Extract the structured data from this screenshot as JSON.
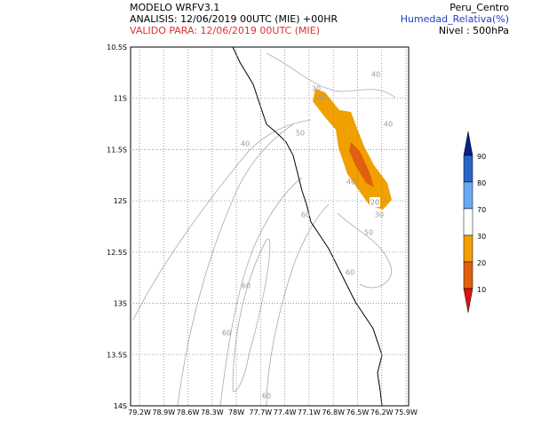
{
  "header": {
    "model": "MODELO WRFV3.1",
    "analysis": "ANALISIS: 12/06/2019 00UTC (MIE) +00HR",
    "valid": "VALIDO PARA: 12/06/2019 00UTC (MIE)",
    "region": "Peru_Centro",
    "variable": "Humedad_Relativa(%)",
    "level": "Nivel : 500hPa"
  },
  "map": {
    "lat_labels": [
      "10.5S",
      "11S",
      "11.5S",
      "12S",
      "12.5S",
      "13S",
      "13.5S",
      "14S"
    ],
    "lon_labels": [
      "79.2W",
      "78.9W",
      "78.6W",
      "78.3W",
      "78W",
      "77.7W",
      "77.4W",
      "77.1W",
      "76.8W",
      "76.5W",
      "76.2W",
      "75.9W"
    ],
    "contour_labels": [
      "40",
      "40",
      "30",
      "40",
      "50",
      "40",
      "40",
      "20",
      "30",
      "60",
      "50",
      "60",
      "60",
      "60",
      "60"
    ]
  },
  "colorbar": {
    "labels": [
      "90",
      "80",
      "70",
      "30",
      "20",
      "10"
    ]
  }
}
